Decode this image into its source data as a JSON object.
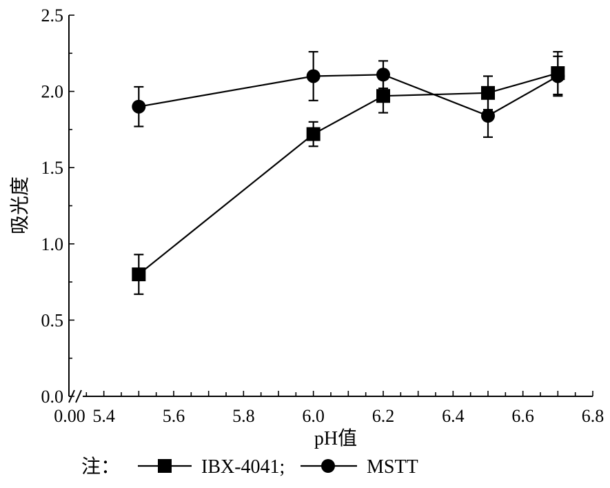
{
  "chart_data": {
    "type": "line",
    "title": "",
    "xlabel": "pH值",
    "ylabel": "吸光度",
    "xlim": [
      5.3,
      6.8
    ],
    "ylim": [
      0,
      2.5
    ],
    "axis_break": "x-origin",
    "x_origin_label": "0.00",
    "x_ticks": [
      "5.4",
      "5.6",
      "5.8",
      "6.0",
      "6.2",
      "6.4",
      "6.6",
      "6.8"
    ],
    "y_ticks": [
      "0.0",
      "0.5",
      "1.0",
      "1.5",
      "2.0",
      "2.5"
    ],
    "grid": false,
    "series": [
      {
        "name": "IBX-4041",
        "marker": "square",
        "x": [
          5.5,
          6.0,
          6.2,
          6.5,
          6.7
        ],
        "y": [
          0.8,
          1.72,
          1.97,
          1.99,
          2.12
        ],
        "err": [
          0.13,
          0.08,
          0.11,
          0.11,
          0.14
        ]
      },
      {
        "name": "MSTT",
        "marker": "circle",
        "x": [
          5.5,
          6.0,
          6.2,
          6.5,
          6.7
        ],
        "y": [
          1.9,
          2.1,
          2.11,
          1.84,
          2.1
        ],
        "err": [
          0.13,
          0.16,
          0.09,
          0.14,
          0.13
        ]
      }
    ],
    "legend": {
      "placement": "bottom-left",
      "prefix": "注：",
      "labels": [
        "IBX-4041;",
        "MSTT"
      ]
    }
  }
}
